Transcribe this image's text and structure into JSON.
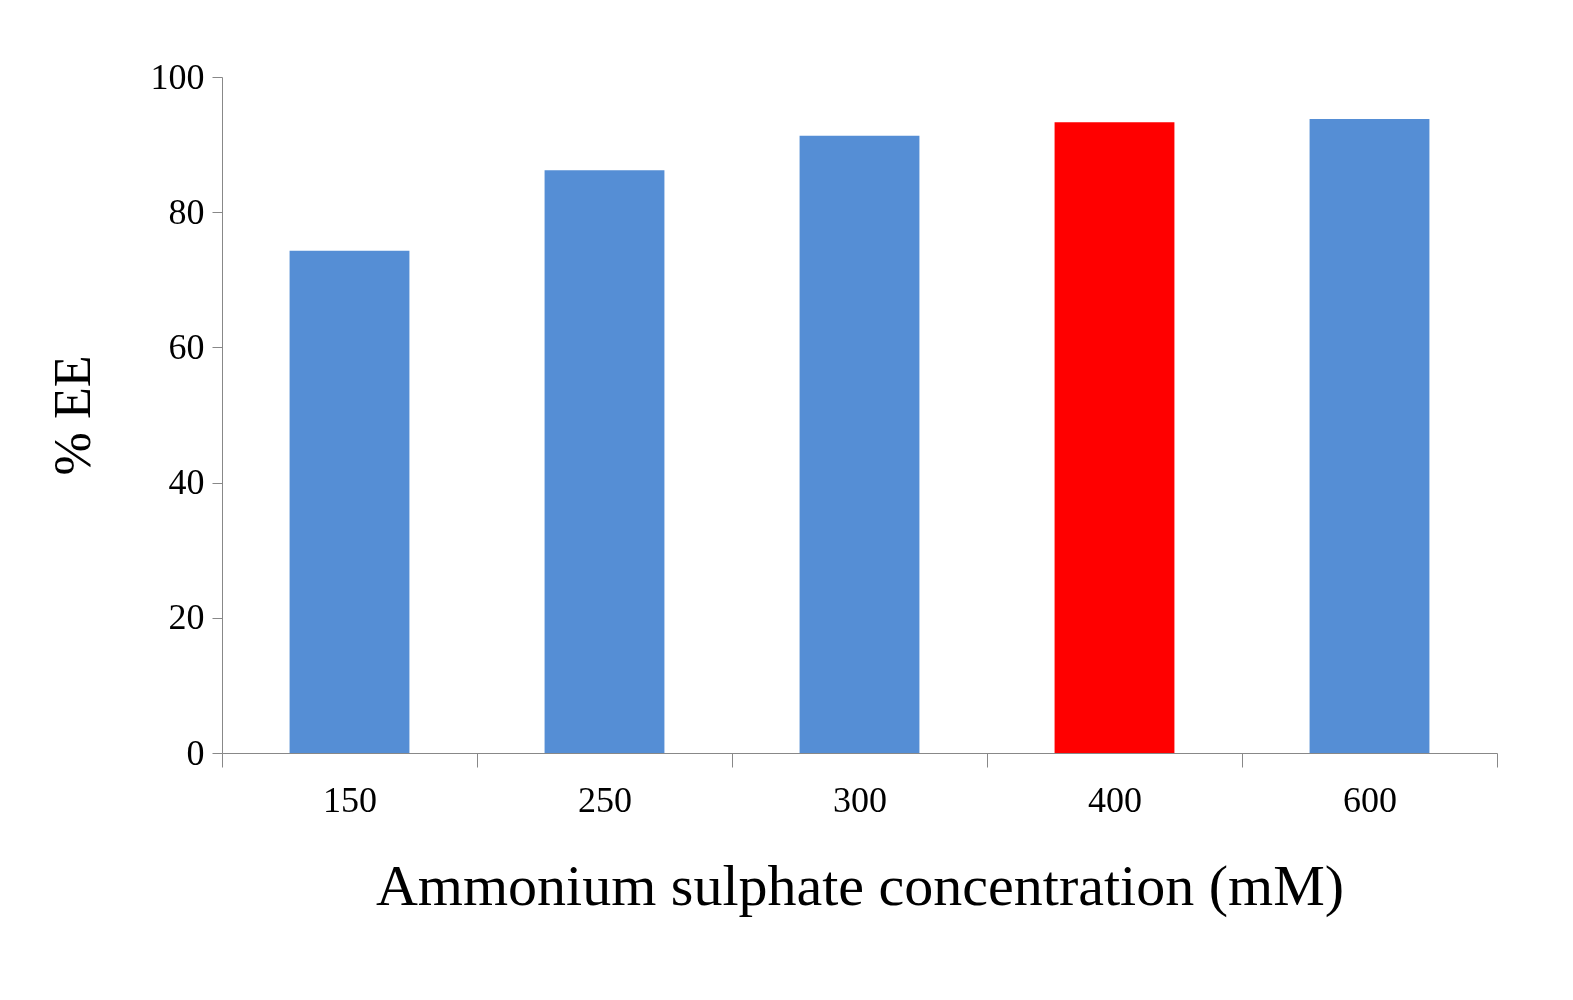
{
  "chart_data": {
    "type": "bar",
    "xlabel": "Ammonium sulphate concentration (mM)",
    "ylabel": "% EE",
    "categories": [
      "150",
      "250",
      "300",
      "400",
      "600"
    ],
    "values": [
      74.3,
      86.2,
      91.3,
      93.3,
      93.8
    ],
    "colors": [
      "#558ed5",
      "#558ed5",
      "#558ed5",
      "#ff0000",
      "#558ed5"
    ],
    "ylim": [
      0,
      100
    ],
    "yticks": [
      0,
      20,
      40,
      60,
      80,
      100
    ],
    "grid": false
  }
}
